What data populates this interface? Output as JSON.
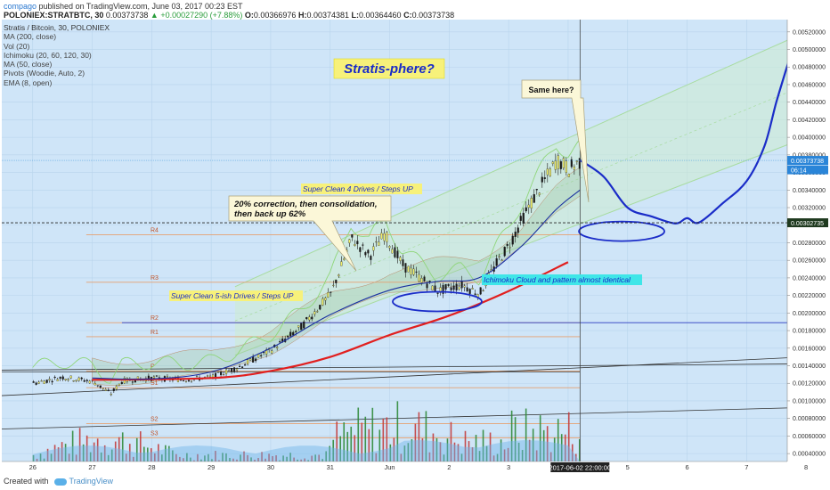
{
  "header": {
    "author": "compago",
    "published": " published on TradingView.com, June 03, 2017 00:23 EST",
    "symbol": "POLONIEX:STRATBTC, 30 ",
    "last": "0.00373738",
    "change": " ▲ +0.00027290 (+7.88%)",
    "o_label": " O:",
    "o": "0.00366976",
    "h_label": " H:",
    "h": "0.00374381",
    "l_label": " L:",
    "l": "0.00364460",
    "c_label": " C:",
    "c": "0.00373738"
  },
  "legend": [
    "Stratis / Bitcoin, 30, POLONIEX",
    "MA (200, close)",
    "Vol (20)",
    "Ichimoku (20, 60, 120, 30)",
    "MA (50, close)",
    "Pivots (Woodie, Auto, 2)",
    "EMA (8, open)"
  ],
  "footer": {
    "created": "Created with",
    "brand": "TradingView"
  },
  "annotations": {
    "title": "Stratis-phere?",
    "same_here": "Same here?",
    "correction": [
      "20% correction, then consolidation,",
      "then back up 62%"
    ],
    "four_drives": "Super Clean 4 Drives  / Steps UP",
    "five_drives": "Super Clean 5-ish Drives / Steps UP",
    "ichimoku": "Ichimoku Cloud and pattern almost identical"
  },
  "colors": {
    "background": "#cfe5f8",
    "candle": "#1a1a1a",
    "ma200": "#e11f1f",
    "ma50": "#1a2fa0",
    "projection": "#1a2cc8",
    "channel": "#a8dca0",
    "pivot": "#e6a070",
    "ema": "#8fd67a",
    "volume_up": "#2f8a3a",
    "volume_down": "#c23b3b"
  },
  "chart_data": {
    "type": "candlestick",
    "y_ticks": [
      "0.00520000",
      "0.00500000",
      "0.00480000",
      "0.00460000",
      "0.00440000",
      "0.00420000",
      "0.00400000",
      "0.00380000",
      "0.00360000",
      "0.00340000",
      "0.00320000",
      "0.00300000",
      "0.00280000",
      "0.00260000",
      "0.00240000",
      "0.00220000",
      "0.00200000",
      "0.00180000",
      "0.00160000",
      "0.00140000",
      "0.00120000",
      "0.00100000",
      "0.00080000",
      "0.00060000",
      "0.00040000"
    ],
    "ylim": [
      0.00031,
      0.00534
    ],
    "x_ticks": [
      "26",
      "27",
      "28",
      "29",
      "30",
      "31",
      "Jun",
      "2",
      "3",
      "4",
      "5",
      "6",
      "7",
      "8"
    ],
    "time_marker": "2017-06-02 22:00:00",
    "price_labels": [
      {
        "label": "0.00373738",
        "value": 0.00373738,
        "fill": "#2a85d8"
      },
      {
        "label": "06:14",
        "value": 0.00363,
        "fill": "#2a85d8"
      },
      {
        "label": "0.00302735",
        "value": 0.00302735,
        "fill": "#1f3a1f"
      }
    ],
    "pivot_levels": [
      {
        "name": "R4",
        "value": 0.00289
      },
      {
        "name": "R3",
        "value": 0.00235
      },
      {
        "name": "R2",
        "value": 0.00189
      },
      {
        "name": "R1",
        "value": 0.00173
      },
      {
        "name": "P",
        "value": 0.00134
      },
      {
        "name": "S1",
        "value": 0.00115
      },
      {
        "name": "S2",
        "value": 0.00074
      },
      {
        "name": "S3",
        "value": 0.00058
      }
    ],
    "price_path": [
      [
        0,
        0.0012
      ],
      [
        0.5,
        0.00127
      ],
      [
        1,
        0.00122
      ],
      [
        1.3,
        0.00108
      ],
      [
        1.5,
        0.00123
      ],
      [
        2,
        0.00126
      ],
      [
        2.5,
        0.00124
      ],
      [
        3,
        0.00127
      ],
      [
        3.5,
        0.0014
      ],
      [
        4,
        0.00158
      ],
      [
        4.5,
        0.00184
      ],
      [
        5,
        0.00222
      ],
      [
        5.35,
        0.00285
      ],
      [
        5.65,
        0.00265
      ],
      [
        5.9,
        0.0029
      ],
      [
        6.2,
        0.00255
      ],
      [
        6.5,
        0.0024
      ],
      [
        6.8,
        0.00225
      ],
      [
        7.2,
        0.00232
      ],
      [
        7.5,
        0.00222
      ],
      [
        7.8,
        0.00258
      ],
      [
        8,
        0.00278
      ],
      [
        8.3,
        0.00318
      ],
      [
        8.6,
        0.00352
      ],
      [
        8.8,
        0.00374
      ],
      [
        9,
        0.00364
      ],
      [
        9.2,
        0.00373
      ]
    ],
    "projection": [
      [
        9.2,
        0.00374
      ],
      [
        9.6,
        0.00355
      ],
      [
        10.0,
        0.0032
      ],
      [
        10.4,
        0.0031
      ],
      [
        10.8,
        0.00302
      ],
      [
        11.0,
        0.00308
      ],
      [
        11.2,
        0.00303
      ],
      [
        11.6,
        0.00325
      ],
      [
        12.0,
        0.0035
      ],
      [
        12.3,
        0.0039
      ],
      [
        12.5,
        0.0044
      ],
      [
        12.7,
        0.00485
      ]
    ],
    "ma200": [
      [
        1,
        0.00124
      ],
      [
        3,
        0.00126
      ],
      [
        4,
        0.00134
      ],
      [
        5,
        0.0015
      ],
      [
        6,
        0.00175
      ],
      [
        7,
        0.00197
      ],
      [
        8,
        0.00225
      ],
      [
        9,
        0.00258
      ]
    ],
    "ma50": [
      [
        1,
        0.00126
      ],
      [
        2,
        0.00125
      ],
      [
        3,
        0.00133
      ],
      [
        4,
        0.0016
      ],
      [
        5,
        0.00198
      ],
      [
        6,
        0.00226
      ],
      [
        6.8,
        0.00236
      ],
      [
        7.5,
        0.0024
      ],
      [
        8.2,
        0.00275
      ],
      [
        8.8,
        0.00318
      ],
      [
        9.2,
        0.0034
      ]
    ],
    "volume_top": 0.00146,
    "volume_bottom": 0.00031
  }
}
